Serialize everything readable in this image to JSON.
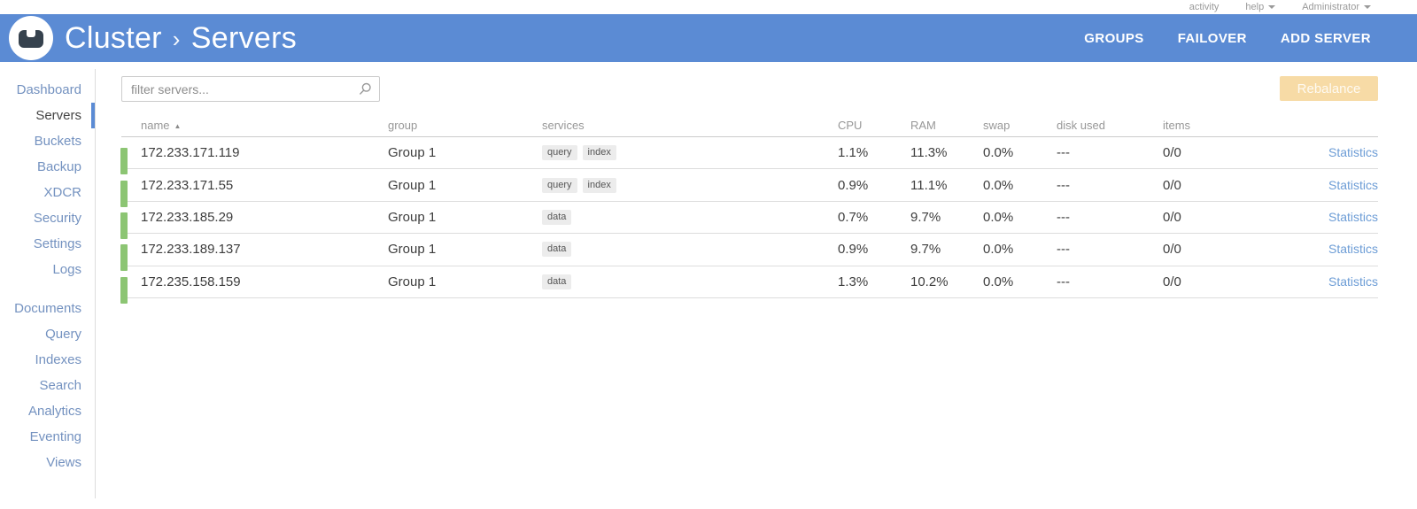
{
  "topbar": {
    "activity_label": "activity",
    "help_label": "help",
    "user_label": "Administrator"
  },
  "header": {
    "breadcrumb": {
      "root": "Cluster",
      "separator": "›",
      "current": "Servers"
    },
    "actions": {
      "groups": "GROUPS",
      "failover": "FAILOVER",
      "add_server": "ADD SERVER"
    }
  },
  "sidebar": {
    "active_item": "Servers",
    "group1": [
      "Dashboard",
      "Servers",
      "Buckets",
      "Backup",
      "XDCR",
      "Security",
      "Settings",
      "Logs"
    ],
    "group2": [
      "Documents",
      "Query",
      "Indexes",
      "Search",
      "Analytics",
      "Eventing",
      "Views"
    ]
  },
  "toolbar": {
    "filter_placeholder": "filter servers...",
    "rebalance_label": "Rebalance"
  },
  "table": {
    "columns": {
      "name": "name",
      "group": "group",
      "services": "services",
      "cpu": "CPU",
      "ram": "RAM",
      "swap": "swap",
      "disk": "disk used",
      "items": "items"
    },
    "sort_indicator": "▲",
    "rows": [
      {
        "name": "172.233.171.119",
        "group": "Group 1",
        "services": [
          "query",
          "index"
        ],
        "cpu": "1.1%",
        "ram": "11.3%",
        "swap": "0.0%",
        "disk": "---",
        "items": "0/0",
        "link": "Statistics"
      },
      {
        "name": "172.233.171.55",
        "group": "Group 1",
        "services": [
          "query",
          "index"
        ],
        "cpu": "0.9%",
        "ram": "11.1%",
        "swap": "0.0%",
        "disk": "---",
        "items": "0/0",
        "link": "Statistics"
      },
      {
        "name": "172.233.185.29",
        "group": "Group 1",
        "services": [
          "data"
        ],
        "cpu": "0.7%",
        "ram": "9.7%",
        "swap": "0.0%",
        "disk": "---",
        "items": "0/0",
        "link": "Statistics"
      },
      {
        "name": "172.233.189.137",
        "group": "Group 1",
        "services": [
          "data"
        ],
        "cpu": "0.9%",
        "ram": "9.7%",
        "swap": "0.0%",
        "disk": "---",
        "items": "0/0",
        "link": "Statistics"
      },
      {
        "name": "172.235.158.159",
        "group": "Group 1",
        "services": [
          "data"
        ],
        "cpu": "1.3%",
        "ram": "10.2%",
        "swap": "0.0%",
        "disk": "---",
        "items": "0/0",
        "link": "Statistics"
      }
    ]
  },
  "colors": {
    "header_blue": "#5B8BD4",
    "green_status": "#8CC573",
    "link_blue": "#6D9DD6",
    "rebalance_bg": "#F7DBA6",
    "sidebar_link": "#7492C0"
  }
}
